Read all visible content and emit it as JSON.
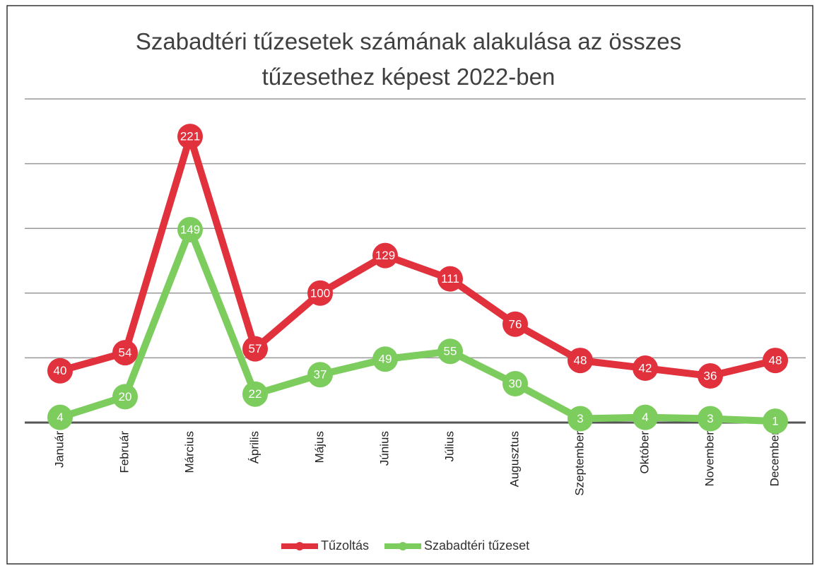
{
  "chart_data": {
    "type": "line",
    "title": "Szabadtéri tűzesetek számának alakulása az összes tűzesethez képest 2022-ben",
    "categories": [
      "Január",
      "Február",
      "Március",
      "Április",
      "Május",
      "Június",
      "Július",
      "Augusztus",
      "Szeptember",
      "Október",
      "November",
      "December"
    ],
    "series": [
      {
        "name": "Tűzoltás",
        "color": "#e0313d",
        "values": [
          40,
          54,
          221,
          57,
          100,
          129,
          111,
          76,
          48,
          42,
          36,
          48
        ]
      },
      {
        "name": "Szabadtéri tűzeset",
        "color": "#7dcc5e",
        "values": [
          4,
          20,
          149,
          22,
          37,
          49,
          55,
          30,
          3,
          4,
          3,
          1
        ]
      }
    ],
    "ylim": [
      0,
      250
    ],
    "yticks": [
      0,
      50,
      100,
      150,
      200,
      250
    ],
    "grid": true,
    "legend": "bottom"
  }
}
